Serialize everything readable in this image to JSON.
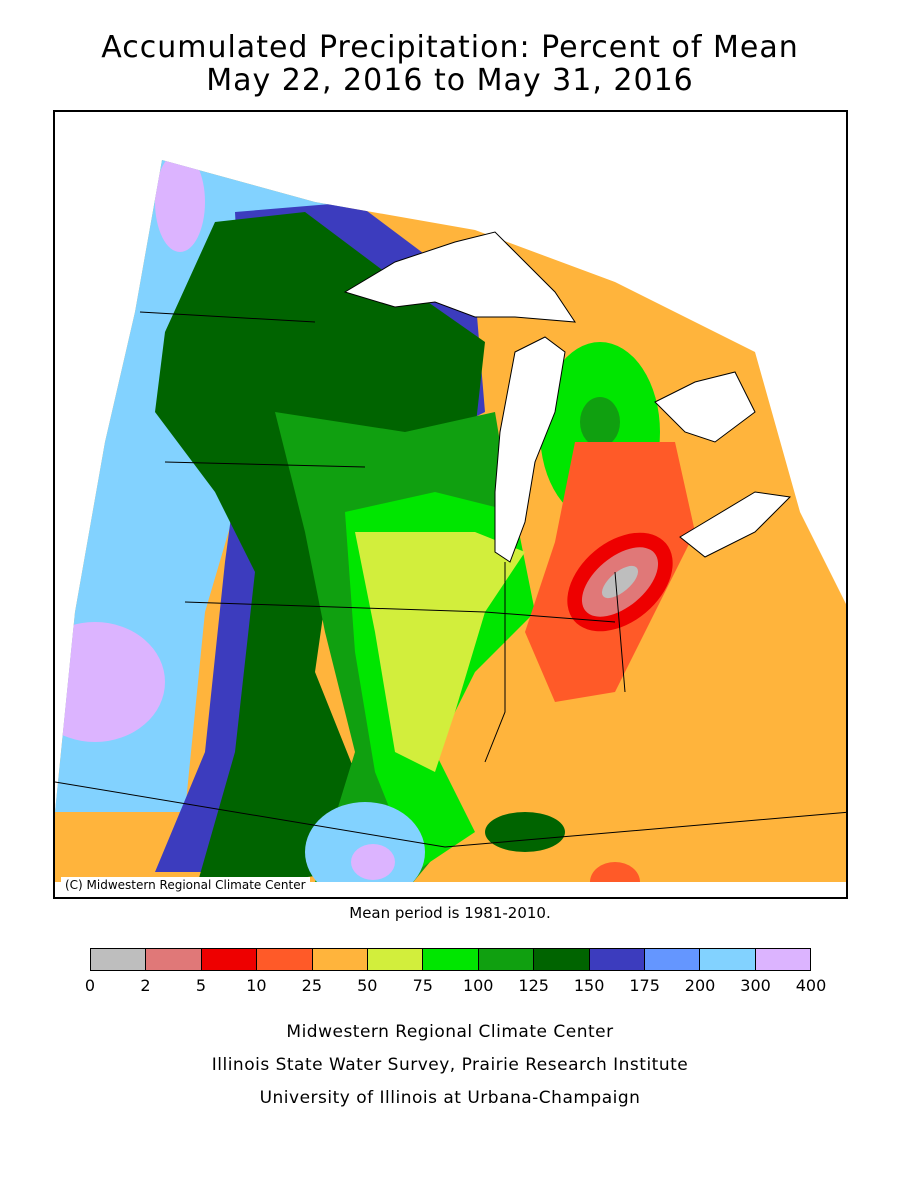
{
  "title": {
    "line1": "Accumulated Precipitation: Percent of Mean",
    "line2": "May 22, 2016 to May 31, 2016"
  },
  "map": {
    "copyright": "(C) Midwestern Regional Climate Center",
    "region": "Midwestern United States",
    "palette": {
      "0-2": "#bebebe",
      "2-5": "#e07878",
      "5-10": "#ee0000",
      "10-25": "#ff5a28",
      "25-50": "#ffb43c",
      "50-75": "#d2ee3c",
      "75-100": "#00e600",
      "100-125": "#10a010",
      "125-150": "#006400",
      "150-175": "#3c3cbe",
      "175-200": "#6496ff",
      "200-300": "#82d2ff",
      "300-400": "#dcb4ff"
    }
  },
  "mean_period": "Mean period is 1981-2010.",
  "legend": {
    "ticks": [
      "0",
      "2",
      "5",
      "10",
      "25",
      "50",
      "75",
      "100",
      "125",
      "150",
      "175",
      "200",
      "300",
      "400"
    ],
    "colors": [
      "#bebebe",
      "#e07878",
      "#ee0000",
      "#ff5a28",
      "#ffb43c",
      "#d2ee3c",
      "#00e600",
      "#10a010",
      "#006400",
      "#3c3cbe",
      "#6496ff",
      "#82d2ff",
      "#dcb4ff"
    ]
  },
  "credits": {
    "line1": "Midwestern Regional Climate Center",
    "line2": "Illinois State Water Survey, Prairie Research Institute",
    "line3": "University of Illinois at Urbana-Champaign"
  }
}
